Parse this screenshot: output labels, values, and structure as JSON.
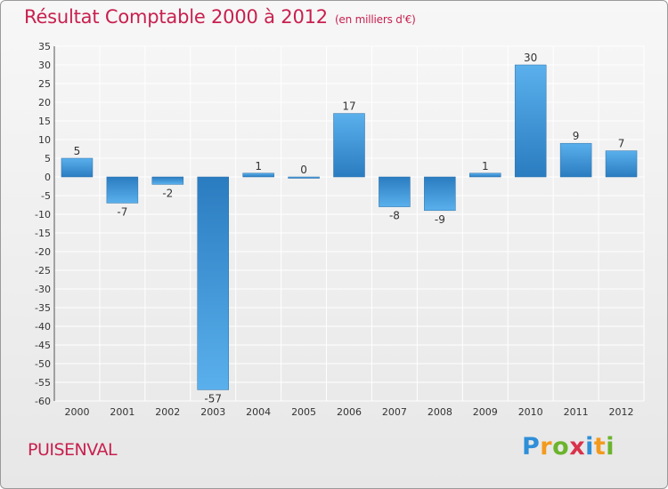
{
  "header": {
    "title": "Résultat Comptable 2000 à 2012",
    "unit": "(en milliers d'€)"
  },
  "footer": {
    "commune": "PUISENVAL",
    "logo_text": "Proxiti"
  },
  "colors": {
    "title": "#c8204f",
    "bar_light": "#5ab0ec",
    "bar_dark": "#2a7cc0",
    "grid": "#ffffff"
  },
  "chart_data": {
    "type": "bar",
    "categories": [
      "2000",
      "2001",
      "2002",
      "2003",
      "2004",
      "2005",
      "2006",
      "2007",
      "2008",
      "2009",
      "2010",
      "2011",
      "2012"
    ],
    "values": [
      5,
      -7,
      -2,
      -57,
      1,
      0,
      17,
      -8,
      -9,
      1,
      30,
      9,
      7
    ],
    "title": "Résultat Comptable 2000 à 2012",
    "xlabel": "",
    "ylabel": "",
    "ylim": [
      -60,
      35
    ],
    "yticks": [
      35,
      30,
      25,
      20,
      15,
      10,
      5,
      0,
      -5,
      -10,
      -15,
      -20,
      -25,
      -30,
      -35,
      -40,
      -45,
      -50,
      -55,
      -60
    ],
    "grid": true,
    "data_labels": true
  }
}
